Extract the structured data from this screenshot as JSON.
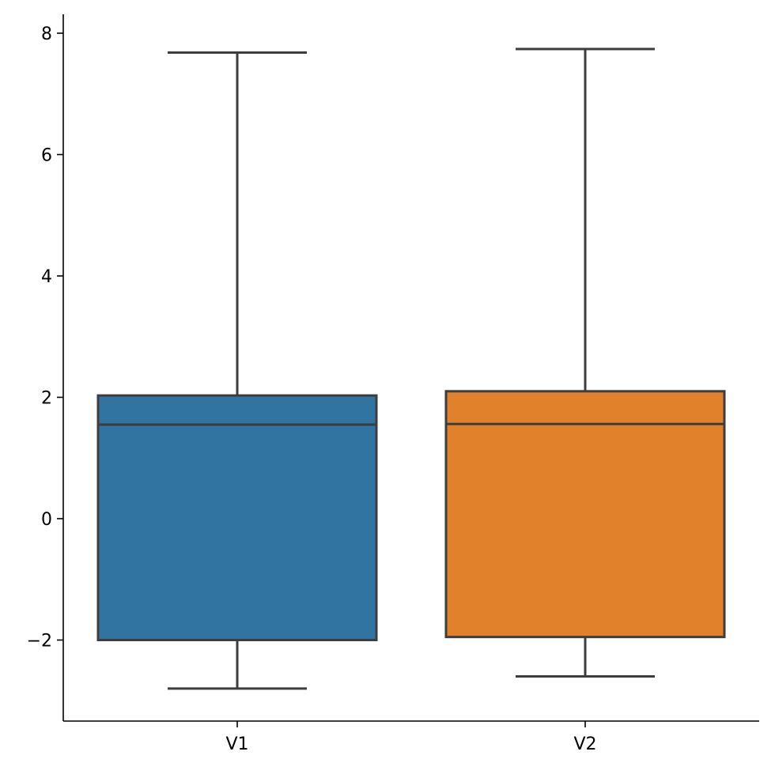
{
  "chart_data": {
    "type": "box",
    "title": "",
    "xlabel": "",
    "ylabel": "",
    "ylim": [
      -3.3,
      8.3
    ],
    "yticks": [
      -2,
      0,
      2,
      4,
      6,
      8
    ],
    "ytick_labels": [
      "−2",
      "0",
      "2",
      "4",
      "6",
      "8"
    ],
    "grid": false,
    "categories": [
      "V1",
      "V2"
    ],
    "boxes": [
      {
        "name": "V1",
        "whisker_low": -2.8,
        "q1": -2.0,
        "median": 1.55,
        "q3": 2.03,
        "whisker_high": 7.68,
        "color": "#3274a1"
      },
      {
        "name": "V2",
        "whisker_low": -2.6,
        "q1": -1.95,
        "median": 1.56,
        "q3": 2.1,
        "whisker_high": 7.74,
        "color": "#e1812c"
      }
    ],
    "line_color": "#3d3d3d"
  }
}
